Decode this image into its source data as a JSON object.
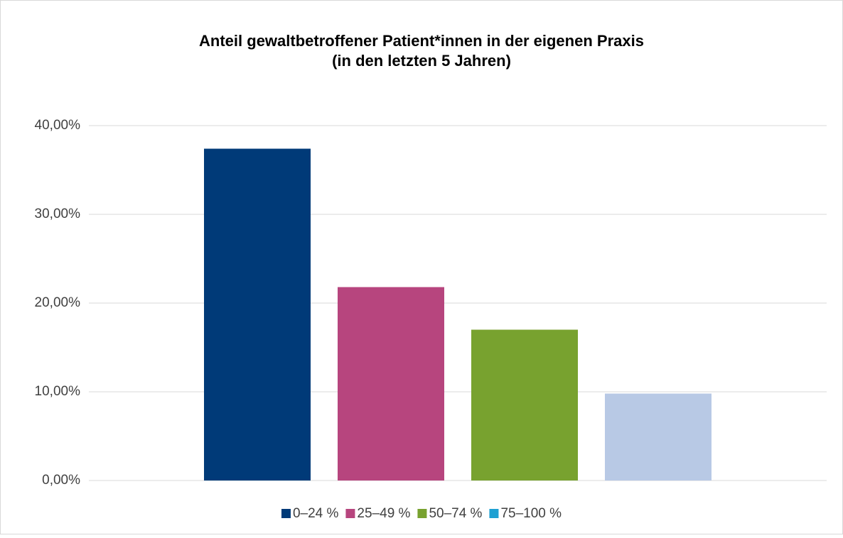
{
  "chart_data": {
    "type": "bar",
    "title": [
      "Anteil gewaltbetroffener Patient*innen in der eigenen Praxis",
      "(in den letzten 5 Jahren)"
    ],
    "categories": [
      null
    ],
    "series": [
      {
        "name": "0–24 %",
        "color": "#003a78",
        "bar_color": "#003a78",
        "values": [
          37.4
        ]
      },
      {
        "name": "25–49 %",
        "color": "#b7457e",
        "bar_color": "#b7457e",
        "values": [
          21.8
        ]
      },
      {
        "name": "50–74 %",
        "color": "#78a22f",
        "bar_color": "#78a22f",
        "values": [
          17.0
        ]
      },
      {
        "name": "75–100 %",
        "color": "#1ea0d2",
        "bar_color": "#b8c9e5",
        "values": [
          9.8
        ]
      }
    ],
    "ylim": [
      0,
      40
    ],
    "yticks": [
      {
        "value": 0,
        "label": "0,00%"
      },
      {
        "value": 10,
        "label": "10,00%"
      },
      {
        "value": 20,
        "label": "20,00%"
      },
      {
        "value": 30,
        "label": "30,00%"
      },
      {
        "value": 40,
        "label": "40,00%"
      }
    ],
    "grid": true,
    "legend": "bottom"
  }
}
